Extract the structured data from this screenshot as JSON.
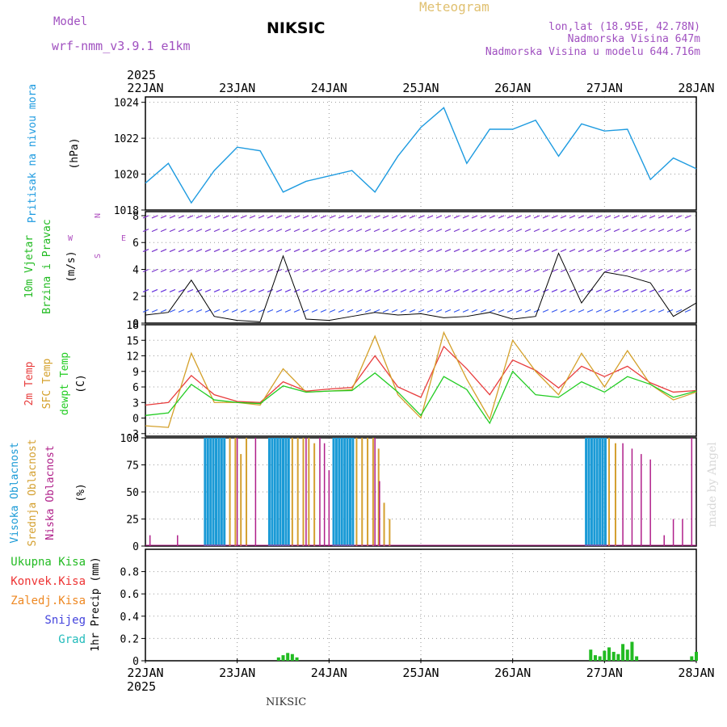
{
  "header": {
    "model_label": "Model",
    "model_name": "wrf-nmm_v3.9.1 e1km",
    "title": "NIKSIC",
    "meteogram": "Meteogram",
    "lonlat": "lon,lat (18.95E, 42.78N)",
    "elevation": "Nadmorska Visina 647m",
    "model_elevation": "Nadmorska Visina u modelu 644.716m",
    "footer": "NIKSIC",
    "watermark": "made by Angel"
  },
  "colors": {
    "pressure": "#1e9be0",
    "wind_label": "#22bb22",
    "temp2m": "#e83c3c",
    "sfc": "#d4a02a",
    "dewpt": "#22cc22",
    "high_cloud": "#1a9ad6",
    "mid_cloud": "#d4a030",
    "low_cloud": "#b0208a",
    "precip": "#22bb22",
    "konv": "#ee3333",
    "zaledj": "#ee8822",
    "snijeg": "#4444dd",
    "grad": "#22bbbb",
    "compass": "#b050c0"
  },
  "chart_data": [
    {
      "type": "line",
      "ylabel_main": "Pritisak na nivou mora",
      "ylabel_unit": "(hPa)",
      "ylim": [
        1018,
        1024.3
      ],
      "yticks": [
        "1018",
        "1020",
        "1022",
        "1024"
      ],
      "x": [
        0,
        0.25,
        0.5,
        0.75,
        1,
        1.25,
        1.5,
        1.75,
        2,
        2.25,
        2.5,
        2.75,
        3,
        3.25,
        3.5,
        3.75,
        4,
        4.25,
        4.5,
        4.75,
        5,
        5.25,
        5.5,
        5.75,
        6
      ],
      "series": [
        {
          "values": [
            1019.5,
            1020.6,
            1018.4,
            1020.2,
            1021.5,
            1021.3,
            1019.0,
            1019.6,
            1019.9,
            1020.2,
            1019.0,
            1021.0,
            1022.6,
            1023.7,
            1020.6,
            1022.5,
            1022.5,
            1023.0,
            1021.0,
            1022.8,
            1022.4,
            1022.5,
            1019.7,
            1020.9,
            1020.3
          ]
        }
      ]
    },
    {
      "type": "scatter",
      "ylabel_main": "10m Vjetar",
      "ylabel_sub": "Brzina i Pravac",
      "ylabel_unit": "(m/s)",
      "ylim": [
        0,
        8.3
      ],
      "yticks": [
        "0",
        "2",
        "4",
        "6",
        "8"
      ],
      "compass": {
        "n": "N",
        "s": "S",
        "w": "W",
        "e": "E"
      },
      "x": [
        0,
        0.25,
        0.5,
        0.75,
        1,
        1.25,
        1.5,
        1.75,
        2,
        2.25,
        2.5,
        2.75,
        3,
        3.25,
        3.5,
        3.75,
        4,
        4.25,
        4.5,
        4.75,
        5,
        5.25,
        5.5,
        5.75,
        6
      ],
      "series": [
        {
          "values": [
            0.6,
            0.8,
            3.2,
            0.5,
            0.2,
            0.1,
            5.0,
            0.3,
            0.2,
            0.5,
            0.8,
            0.6,
            0.7,
            0.4,
            0.5,
            0.8,
            0.3,
            0.5,
            5.2,
            1.5,
            3.8,
            3.5,
            3.0,
            0.5,
            1.5
          ]
        }
      ]
    },
    {
      "type": "line",
      "ylabel_main": "2m Temp",
      "ylabel_sub": "SFC Temp",
      "ylabel_third": "dewpt Temp",
      "ylabel_unit": "(C)",
      "ylim": [
        -3.5,
        18
      ],
      "yticks": [
        "-3",
        "0",
        "3",
        "6",
        "9",
        "12",
        "15",
        "18"
      ],
      "x": [
        0,
        0.25,
        0.5,
        0.75,
        1,
        1.25,
        1.5,
        1.75,
        2,
        2.25,
        2.5,
        2.75,
        3,
        3.25,
        3.5,
        3.75,
        4,
        4.25,
        4.5,
        4.75,
        5,
        5.25,
        5.5,
        5.75,
        6
      ],
      "series": [
        {
          "name": "2m Temp",
          "values": [
            2.5,
            3.0,
            8.2,
            4.5,
            3.2,
            3.0,
            7.0,
            5.2,
            5.6,
            5.9,
            12.0,
            6.0,
            4.0,
            13.8,
            9.5,
            4.5,
            11.2,
            9.2,
            5.8,
            10.0,
            8.0,
            10.0,
            6.8,
            5.0,
            5.3
          ]
        },
        {
          "name": "SFC Temp",
          "values": [
            -1.5,
            -1.8,
            12.5,
            3.0,
            3.0,
            2.5,
            9.5,
            5.0,
            5.2,
            5.5,
            15.8,
            4.5,
            0.0,
            16.5,
            7.5,
            -0.2,
            15.0,
            9.0,
            4.5,
            12.5,
            6.0,
            13.0,
            6.5,
            3.5,
            5.0
          ]
        },
        {
          "name": "dewpt Temp",
          "values": [
            0.5,
            1.0,
            6.5,
            3.5,
            3.0,
            2.8,
            6.2,
            5.0,
            5.2,
            5.3,
            8.7,
            5.0,
            0.5,
            8.0,
            5.5,
            -1.0,
            9.0,
            4.5,
            4.0,
            7.0,
            5.0,
            8.0,
            6.5,
            4.0,
            5.2
          ]
        }
      ]
    },
    {
      "type": "bar",
      "ylabel_main": "Visoka Oblacnost",
      "ylabel_sub": "Srednja Oblacnost",
      "ylabel_third": "Niska Oblacnost",
      "ylabel_unit": "(%)",
      "ylim": [
        0,
        100
      ],
      "yticks": [
        "0",
        "25",
        "50",
        "75",
        "100"
      ],
      "series": [
        {
          "name": "Visoka Oblacnost",
          "x": [
            0.65,
            0.68,
            0.71,
            0.74,
            0.77,
            0.8,
            0.83,
            0.86,
            1.35,
            1.38,
            1.41,
            1.44,
            1.47,
            1.5,
            1.53,
            1.56,
            2.05,
            2.08,
            2.11,
            2.14,
            2.17,
            2.2,
            2.23,
            2.26,
            4.8,
            4.83,
            4.86,
            4.89,
            4.92,
            4.95,
            4.98,
            5.01
          ],
          "values": [
            100,
            100,
            100,
            100,
            100,
            100,
            100,
            100,
            100,
            100,
            100,
            100,
            100,
            100,
            100,
            100,
            100,
            100,
            100,
            100,
            100,
            100,
            100,
            100,
            100,
            100,
            100,
            100,
            100,
            100,
            100,
            100
          ]
        },
        {
          "name": "Srednja Oblacnost",
          "x": [
            0.92,
            0.98,
            1.04,
            1.1,
            1.6,
            1.66,
            1.72,
            1.78,
            1.84,
            2.3,
            2.36,
            2.42,
            2.48,
            2.54,
            2.6,
            2.66,
            5.05,
            5.12
          ],
          "values": [
            100,
            100,
            85,
            100,
            100,
            100,
            100,
            100,
            95,
            100,
            100,
            100,
            100,
            90,
            40,
            25,
            100,
            95
          ]
        },
        {
          "name": "Niska Oblacnost",
          "x": [
            0.05,
            0.35,
            1.0,
            1.2,
            1.75,
            1.9,
            1.95,
            2.0,
            2.5,
            2.55,
            5.2,
            5.3,
            5.4,
            5.5,
            5.65,
            5.75,
            5.85,
            5.95
          ],
          "values": [
            10,
            10,
            100,
            100,
            100,
            100,
            95,
            70,
            100,
            60,
            95,
            90,
            85,
            80,
            10,
            25,
            25,
            100
          ]
        }
      ]
    },
    {
      "type": "bar",
      "ylabel_main": "1hr Precip (mm)",
      "legend": [
        "Ukupna Kisa",
        "Konvek.Kisa",
        "Zaledj.Kisa",
        "Snijeg",
        "Grad"
      ],
      "ylim": [
        0,
        1.0
      ],
      "yticks": [
        "0",
        "0.2",
        "0.4",
        "0.6",
        "0.8"
      ],
      "series": [
        {
          "name": "Ukupna Kisa",
          "x": [
            1.45,
            1.5,
            1.55,
            1.6,
            1.65,
            4.85,
            4.9,
            4.95,
            5.0,
            5.05,
            5.1,
            5.15,
            5.2,
            5.25,
            5.3,
            5.35,
            5.95,
            6.0
          ],
          "values": [
            0.03,
            0.05,
            0.07,
            0.06,
            0.03,
            0.1,
            0.05,
            0.04,
            0.09,
            0.12,
            0.08,
            0.06,
            0.15,
            0.1,
            0.17,
            0.04,
            0.04,
            0.08
          ]
        }
      ]
    }
  ],
  "time_axis": {
    "year": "2025",
    "ticks": [
      "22JAN",
      "23JAN",
      "24JAN",
      "25JAN",
      "26JAN",
      "27JAN",
      "28JAN"
    ]
  }
}
